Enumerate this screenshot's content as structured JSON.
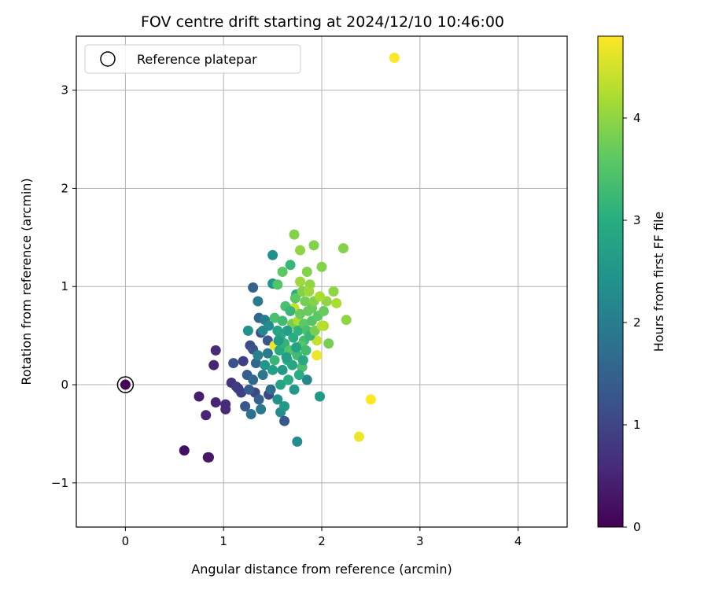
{
  "chart_data": {
    "type": "scatter",
    "title": "FOV centre drift starting at 2024/12/10 10:46:00",
    "xlabel": "Angular distance from reference (arcmin)",
    "ylabel": "Rotation from reference (arcmin)",
    "xlim": [
      -0.5,
      4.5
    ],
    "ylim": [
      -1.45,
      3.55
    ],
    "xticks": [
      0,
      1,
      2,
      3,
      4
    ],
    "xtick_labels": [
      "0",
      "1",
      "2",
      "3",
      "4"
    ],
    "yticks": [
      -1,
      0,
      1,
      2,
      3
    ],
    "ytick_labels": [
      "−1",
      "0",
      "1",
      "2",
      "3"
    ],
    "grid": true,
    "legend": {
      "position": "upper-left",
      "entries": [
        "Reference platepar"
      ]
    },
    "reference_point": {
      "x": 0,
      "y": 0
    },
    "colorbar": {
      "label": "Hours from first FF file",
      "colormap": "viridis",
      "range": [
        0,
        4.8
      ],
      "ticks": [
        0,
        1,
        2,
        3,
        4
      ],
      "tick_labels": [
        "0",
        "1",
        "2",
        "3",
        "4"
      ]
    },
    "points": [
      {
        "x": 0.0,
        "y": 0.0,
        "t": 0.0
      },
      {
        "x": 0.6,
        "y": -0.67,
        "t": 0.2
      },
      {
        "x": 0.84,
        "y": -0.74,
        "t": 0.3
      },
      {
        "x": 0.85,
        "y": -0.74,
        "t": 0.3
      },
      {
        "x": 0.75,
        "y": -0.12,
        "t": 0.4
      },
      {
        "x": 0.82,
        "y": -0.31,
        "t": 0.5
      },
      {
        "x": 0.9,
        "y": 0.2,
        "t": 0.5
      },
      {
        "x": 0.92,
        "y": 0.35,
        "t": 0.6
      },
      {
        "x": 0.92,
        "y": -0.18,
        "t": 0.5
      },
      {
        "x": 1.02,
        "y": -0.2,
        "t": 0.6
      },
      {
        "x": 1.02,
        "y": -0.25,
        "t": 0.6
      },
      {
        "x": 1.08,
        "y": 0.02,
        "t": 0.7
      },
      {
        "x": 1.1,
        "y": 0.22,
        "t": 1.2
      },
      {
        "x": 1.13,
        "y": -0.02,
        "t": 0.8
      },
      {
        "x": 1.15,
        "y": -0.04,
        "t": 0.8
      },
      {
        "x": 1.18,
        "y": -0.08,
        "t": 0.9
      },
      {
        "x": 1.2,
        "y": 0.24,
        "t": 0.9
      },
      {
        "x": 1.22,
        "y": -0.22,
        "t": 1.3
      },
      {
        "x": 1.24,
        "y": 0.1,
        "t": 1.4
      },
      {
        "x": 1.27,
        "y": 0.4,
        "t": 1.1
      },
      {
        "x": 1.28,
        "y": -0.3,
        "t": 1.8
      },
      {
        "x": 1.3,
        "y": 0.99,
        "t": 1.5
      },
      {
        "x": 1.3,
        "y": 0.36,
        "t": 1.2
      },
      {
        "x": 1.32,
        "y": -0.08,
        "t": 1.0
      },
      {
        "x": 1.33,
        "y": 0.22,
        "t": 1.6
      },
      {
        "x": 1.35,
        "y": 0.85,
        "t": 2.0
      },
      {
        "x": 1.36,
        "y": 0.68,
        "t": 1.6
      },
      {
        "x": 1.38,
        "y": 0.53,
        "t": 1.1
      },
      {
        "x": 1.38,
        "y": -0.25,
        "t": 1.9
      },
      {
        "x": 1.4,
        "y": 0.1,
        "t": 1.9
      },
      {
        "x": 1.42,
        "y": 0.66,
        "t": 2.0
      },
      {
        "x": 1.45,
        "y": 0.45,
        "t": 1.3
      },
      {
        "x": 1.46,
        "y": -0.1,
        "t": 1.0
      },
      {
        "x": 1.5,
        "y": 1.32,
        "t": 2.4
      },
      {
        "x": 1.5,
        "y": 1.03,
        "t": 2.5
      },
      {
        "x": 1.52,
        "y": 0.4,
        "t": 4.7
      },
      {
        "x": 1.52,
        "y": 0.68,
        "t": 3.4
      },
      {
        "x": 1.55,
        "y": 1.02,
        "t": 3.5
      },
      {
        "x": 1.58,
        "y": 0.5,
        "t": 3.0
      },
      {
        "x": 1.58,
        "y": -0.28,
        "t": 2.3
      },
      {
        "x": 1.6,
        "y": 1.15,
        "t": 3.6
      },
      {
        "x": 1.62,
        "y": -0.22,
        "t": 2.6
      },
      {
        "x": 1.62,
        "y": -0.37,
        "t": 1.3
      },
      {
        "x": 1.65,
        "y": 0.25,
        "t": 3.0
      },
      {
        "x": 1.68,
        "y": 1.22,
        "t": 3.2
      },
      {
        "x": 1.7,
        "y": 0.62,
        "t": 3.8
      },
      {
        "x": 1.72,
        "y": 1.53,
        "t": 3.9
      },
      {
        "x": 1.72,
        "y": 0.78,
        "t": 4.4
      },
      {
        "x": 1.74,
        "y": 0.92,
        "t": 3.0
      },
      {
        "x": 1.75,
        "y": -0.58,
        "t": 2.3
      },
      {
        "x": 1.76,
        "y": 0.65,
        "t": 4.2
      },
      {
        "x": 1.78,
        "y": 1.05,
        "t": 4.1
      },
      {
        "x": 1.78,
        "y": 1.37,
        "t": 4.0
      },
      {
        "x": 1.8,
        "y": 0.18,
        "t": 3.4
      },
      {
        "x": 1.82,
        "y": 0.45,
        "t": 3.3
      },
      {
        "x": 1.85,
        "y": 1.15,
        "t": 3.9
      },
      {
        "x": 1.85,
        "y": 0.05,
        "t": 2.2
      },
      {
        "x": 1.88,
        "y": 1.02,
        "t": 4.0
      },
      {
        "x": 1.9,
        "y": 0.78,
        "t": 3.7
      },
      {
        "x": 1.92,
        "y": 1.42,
        "t": 3.9
      },
      {
        "x": 1.95,
        "y": 0.3,
        "t": 4.7
      },
      {
        "x": 1.95,
        "y": 0.45,
        "t": 4.4
      },
      {
        "x": 1.98,
        "y": -0.12,
        "t": 2.6
      },
      {
        "x": 2.0,
        "y": 1.2,
        "t": 3.9
      },
      {
        "x": 2.02,
        "y": 0.6,
        "t": 4.2
      },
      {
        "x": 2.05,
        "y": 0.85,
        "t": 4.0
      },
      {
        "x": 2.07,
        "y": 0.42,
        "t": 3.8
      },
      {
        "x": 2.12,
        "y": 0.95,
        "t": 4.0
      },
      {
        "x": 2.15,
        "y": 0.83,
        "t": 4.2
      },
      {
        "x": 2.22,
        "y": 1.39,
        "t": 3.9
      },
      {
        "x": 2.25,
        "y": 0.66,
        "t": 4.0
      },
      {
        "x": 2.38,
        "y": -0.53,
        "t": 4.7
      },
      {
        "x": 2.5,
        "y": -0.15,
        "t": 4.8
      },
      {
        "x": 2.74,
        "y": 3.33,
        "t": 4.8
      },
      {
        "x": 1.25,
        "y": 0.55,
        "t": 2.4
      },
      {
        "x": 1.35,
        "y": 0.3,
        "t": 2.1
      },
      {
        "x": 1.4,
        "y": 0.55,
        "t": 2.2
      },
      {
        "x": 1.42,
        "y": 0.2,
        "t": 2.5
      },
      {
        "x": 1.45,
        "y": 0.32,
        "t": 2.0
      },
      {
        "x": 1.48,
        "y": -0.05,
        "t": 1.7
      },
      {
        "x": 1.5,
        "y": 0.15,
        "t": 2.7
      },
      {
        "x": 1.52,
        "y": 0.25,
        "t": 3.2
      },
      {
        "x": 1.55,
        "y": 0.55,
        "t": 2.8
      },
      {
        "x": 1.55,
        "y": -0.15,
        "t": 2.4
      },
      {
        "x": 1.57,
        "y": 0.35,
        "t": 2.9
      },
      {
        "x": 1.58,
        "y": 0.0,
        "t": 2.8
      },
      {
        "x": 1.6,
        "y": 0.65,
        "t": 3.3
      },
      {
        "x": 1.6,
        "y": 0.15,
        "t": 2.6
      },
      {
        "x": 1.62,
        "y": 0.42,
        "t": 3.1
      },
      {
        "x": 1.63,
        "y": 0.8,
        "t": 3.4
      },
      {
        "x": 1.65,
        "y": 0.55,
        "t": 2.7
      },
      {
        "x": 1.66,
        "y": 0.05,
        "t": 3.0
      },
      {
        "x": 1.67,
        "y": 0.35,
        "t": 3.5
      },
      {
        "x": 1.68,
        "y": 0.75,
        "t": 3.2
      },
      {
        "x": 1.7,
        "y": 0.2,
        "t": 2.9
      },
      {
        "x": 1.71,
        "y": 0.48,
        "t": 3.0
      },
      {
        "x": 1.72,
        "y": -0.05,
        "t": 2.6
      },
      {
        "x": 1.73,
        "y": 0.88,
        "t": 3.6
      },
      {
        "x": 1.75,
        "y": 0.3,
        "t": 3.3
      },
      {
        "x": 1.76,
        "y": 0.55,
        "t": 3.1
      },
      {
        "x": 1.77,
        "y": 0.1,
        "t": 3.0
      },
      {
        "x": 1.78,
        "y": 0.72,
        "t": 3.7
      },
      {
        "x": 1.79,
        "y": 0.4,
        "t": 3.5
      },
      {
        "x": 1.8,
        "y": 0.95,
        "t": 3.9
      },
      {
        "x": 1.81,
        "y": 0.25,
        "t": 2.9
      },
      {
        "x": 1.82,
        "y": 0.62,
        "t": 3.6
      },
      {
        "x": 1.83,
        "y": 0.85,
        "t": 3.8
      },
      {
        "x": 1.84,
        "y": 0.35,
        "t": 3.3
      },
      {
        "x": 1.85,
        "y": 0.55,
        "t": 3.4
      },
      {
        "x": 1.86,
        "y": 0.75,
        "t": 3.7
      },
      {
        "x": 1.87,
        "y": 0.95,
        "t": 4.1
      },
      {
        "x": 1.88,
        "y": 0.5,
        "t": 3.2
      },
      {
        "x": 1.9,
        "y": 0.65,
        "t": 3.5
      },
      {
        "x": 1.92,
        "y": 0.85,
        "t": 3.9
      },
      {
        "x": 1.93,
        "y": 0.55,
        "t": 3.8
      },
      {
        "x": 1.96,
        "y": 0.7,
        "t": 3.6
      },
      {
        "x": 1.98,
        "y": 0.9,
        "t": 4.2
      },
      {
        "x": 2.0,
        "y": 0.6,
        "t": 4.3
      },
      {
        "x": 2.02,
        "y": 0.75,
        "t": 3.7
      },
      {
        "x": 1.74,
        "y": 0.38,
        "t": 2.8
      },
      {
        "x": 1.64,
        "y": 0.28,
        "t": 2.7
      },
      {
        "x": 1.56,
        "y": 0.45,
        "t": 2.6
      },
      {
        "x": 1.46,
        "y": 0.6,
        "t": 2.3
      },
      {
        "x": 1.36,
        "y": -0.15,
        "t": 1.5
      },
      {
        "x": 1.3,
        "y": 0.05,
        "t": 1.6
      },
      {
        "x": 1.26,
        "y": -0.05,
        "t": 1.4
      }
    ]
  }
}
